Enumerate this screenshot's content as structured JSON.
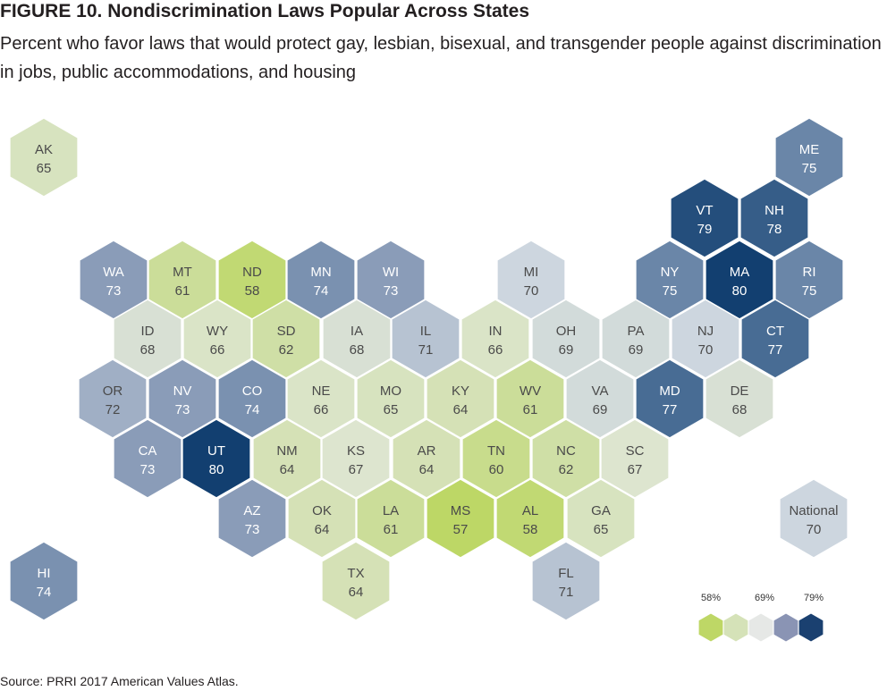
{
  "figure": {
    "title": "FIGURE 10.  Nondiscrimination Laws Popular Across States",
    "subtitle": "Percent who favor laws that would protect gay, lesbian, bisexual, and transgender people against discrimination in jobs, public accommodations, and housing",
    "source": "Source: PRRI 2017 American Values Atlas."
  },
  "palette": [
    "#bed766",
    "#d5e2b8",
    "#e6e8e6",
    "#8a94b4",
    "#1a4070"
  ],
  "legend": {
    "labels": [
      "58%",
      "69%",
      "79%"
    ]
  },
  "map_data": {
    "type": "hex-tile-map",
    "value_range": [
      57,
      80
    ],
    "states": [
      {
        "abbr": "AK",
        "value": 65
      },
      {
        "abbr": "ME",
        "value": 75
      },
      {
        "abbr": "VT",
        "value": 79
      },
      {
        "abbr": "NH",
        "value": 78
      },
      {
        "abbr": "WA",
        "value": 73
      },
      {
        "abbr": "MT",
        "value": 61
      },
      {
        "abbr": "ND",
        "value": 58
      },
      {
        "abbr": "MN",
        "value": 74
      },
      {
        "abbr": "WI",
        "value": 73
      },
      {
        "abbr": "MI",
        "value": 70
      },
      {
        "abbr": "NY",
        "value": 75
      },
      {
        "abbr": "MA",
        "value": 80
      },
      {
        "abbr": "RI",
        "value": 75
      },
      {
        "abbr": "ID",
        "value": 68
      },
      {
        "abbr": "WY",
        "value": 66
      },
      {
        "abbr": "SD",
        "value": 62
      },
      {
        "abbr": "IA",
        "value": 68
      },
      {
        "abbr": "IL",
        "value": 71
      },
      {
        "abbr": "IN",
        "value": 66
      },
      {
        "abbr": "OH",
        "value": 69
      },
      {
        "abbr": "PA",
        "value": 69
      },
      {
        "abbr": "NJ",
        "value": 70
      },
      {
        "abbr": "CT",
        "value": 77
      },
      {
        "abbr": "OR",
        "value": 72
      },
      {
        "abbr": "NV",
        "value": 73
      },
      {
        "abbr": "CO",
        "value": 74
      },
      {
        "abbr": "NE",
        "value": 66
      },
      {
        "abbr": "MO",
        "value": 65
      },
      {
        "abbr": "KY",
        "value": 64
      },
      {
        "abbr": "WV",
        "value": 61
      },
      {
        "abbr": "VA",
        "value": 69
      },
      {
        "abbr": "MD",
        "value": 77
      },
      {
        "abbr": "DE",
        "value": 68
      },
      {
        "abbr": "CA",
        "value": 73
      },
      {
        "abbr": "UT",
        "value": 80
      },
      {
        "abbr": "NM",
        "value": 64
      },
      {
        "abbr": "KS",
        "value": 67
      },
      {
        "abbr": "AR",
        "value": 64
      },
      {
        "abbr": "TN",
        "value": 60
      },
      {
        "abbr": "NC",
        "value": 62
      },
      {
        "abbr": "SC",
        "value": 67
      },
      {
        "abbr": "AZ",
        "value": 73
      },
      {
        "abbr": "OK",
        "value": 64
      },
      {
        "abbr": "LA",
        "value": 61
      },
      {
        "abbr": "MS",
        "value": 57
      },
      {
        "abbr": "AL",
        "value": 58
      },
      {
        "abbr": "GA",
        "value": 65
      },
      {
        "abbr": "TX",
        "value": 64
      },
      {
        "abbr": "FL",
        "value": 71
      },
      {
        "abbr": "HI",
        "value": 74
      },
      {
        "abbr": "National",
        "value": 70
      }
    ]
  }
}
